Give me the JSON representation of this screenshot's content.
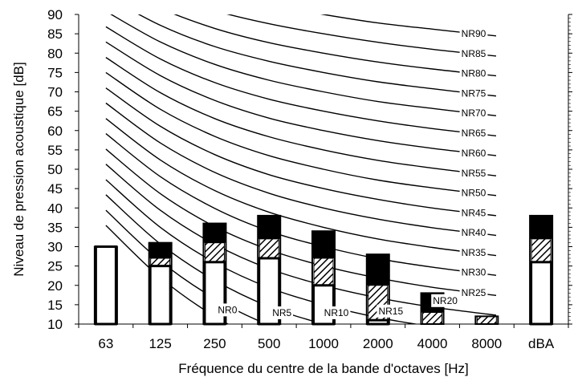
{
  "chart_data": {
    "type": "bar",
    "title": "",
    "xlabel": "Fréquence du centre de la bande d'octaves [Hz]",
    "ylabel": "Niveau de pression acoustique [dB]",
    "ylim": [
      10,
      90
    ],
    "yticks": [
      10,
      15,
      20,
      25,
      30,
      35,
      40,
      45,
      50,
      55,
      60,
      65,
      70,
      75,
      80,
      85,
      90
    ],
    "categories": [
      "63",
      "125",
      "250",
      "500",
      "1000",
      "2000",
      "4000",
      "8000",
      "dBA"
    ],
    "bars": [
      {
        "category": "63",
        "low": 30,
        "hatch_low": null,
        "hatch_high": null,
        "high": 30
      },
      {
        "category": "125",
        "low": 25,
        "hatch_low": 25,
        "hatch_high": 27,
        "high": 31
      },
      {
        "category": "250",
        "low": 26,
        "hatch_low": 26,
        "hatch_high": 31,
        "high": 36
      },
      {
        "category": "500",
        "low": 27,
        "hatch_low": 27,
        "hatch_high": 32,
        "high": 38
      },
      {
        "category": "1000",
        "low": 20,
        "hatch_low": 20,
        "hatch_high": 27,
        "high": 34
      },
      {
        "category": "2000",
        "low": 11,
        "hatch_low": 11,
        "hatch_high": 20,
        "high": 28
      },
      {
        "category": "4000",
        "low": 10,
        "hatch_low": 10,
        "hatch_high": 13,
        "high": 18
      },
      {
        "category": "8000",
        "low": 10,
        "hatch_low": 10,
        "hatch_high": 12,
        "high": 12
      },
      {
        "category": "dBA",
        "low": 26,
        "hatch_low": 26,
        "hatch_high": 32,
        "high": 38
      }
    ],
    "nr_curves": [
      {
        "name": "NR0",
        "values": [
          35.5,
          22.0,
          12.0,
          4.8,
          0,
          -3.5,
          -6.1,
          -8.0
        ]
      },
      {
        "name": "NR5",
        "values": [
          39.4,
          26.3,
          16.6,
          9.7,
          5,
          1.6,
          -1.0,
          -2.8
        ]
      },
      {
        "name": "NR10",
        "values": [
          43.4,
          30.7,
          21.3,
          14.5,
          10,
          6.6,
          4.2,
          2.3
        ]
      },
      {
        "name": "NR15",
        "values": [
          47.3,
          35.0,
          25.9,
          19.4,
          15,
          11.7,
          9.3,
          7.4
        ]
      },
      {
        "name": "NR20",
        "values": [
          51.3,
          39.4,
          30.6,
          24.3,
          20,
          16.8,
          14.4,
          12.6
        ]
      },
      {
        "name": "NR25",
        "values": [
          55.2,
          43.7,
          35.2,
          29.2,
          25,
          21.9,
          19.5,
          17.7
        ]
      },
      {
        "name": "NR30",
        "values": [
          59.2,
          48.1,
          39.9,
          34.0,
          30,
          26.9,
          24.7,
          22.9
        ]
      },
      {
        "name": "NR35",
        "values": [
          63.1,
          52.4,
          44.5,
          38.9,
          35,
          32.0,
          29.8,
          28.0
        ]
      },
      {
        "name": "NR40",
        "values": [
          67.1,
          56.8,
          49.2,
          43.8,
          40,
          37.1,
          34.9,
          33.2
        ]
      },
      {
        "name": "NR45",
        "values": [
          71.0,
          61.1,
          53.8,
          48.6,
          45,
          42.2,
          40.0,
          38.3
        ]
      },
      {
        "name": "NR50",
        "values": [
          75.0,
          65.5,
          58.5,
          53.5,
          50,
          47.2,
          45.2,
          43.5
        ]
      },
      {
        "name": "NR55",
        "values": [
          78.9,
          69.8,
          63.1,
          58.4,
          55,
          52.3,
          50.3,
          48.6
        ]
      },
      {
        "name": "NR60",
        "values": [
          82.9,
          74.2,
          67.8,
          63.2,
          60,
          57.4,
          55.4,
          53.8
        ]
      },
      {
        "name": "NR65",
        "values": [
          86.8,
          78.5,
          72.4,
          68.1,
          65,
          62.5,
          60.5,
          58.9
        ]
      },
      {
        "name": "NR70",
        "values": [
          90.8,
          82.9,
          77.1,
          73.0,
          70,
          67.5,
          65.7,
          64.1
        ]
      },
      {
        "name": "NR75",
        "values": [
          94.7,
          87.2,
          81.7,
          77.9,
          75,
          72.6,
          70.8,
          69.2
        ]
      },
      {
        "name": "NR80",
        "values": [
          98.7,
          91.6,
          86.4,
          82.7,
          80,
          77.7,
          75.9,
          74.4
        ]
      },
      {
        "name": "NR85",
        "values": [
          102.6,
          95.9,
          91.0,
          87.6,
          85,
          82.8,
          81.0,
          79.5
        ]
      },
      {
        "name": "NR90",
        "values": [
          106.6,
          100.3,
          95.7,
          92.5,
          90,
          87.8,
          86.2,
          84.7
        ]
      }
    ],
    "grid": false,
    "legend": "none"
  }
}
